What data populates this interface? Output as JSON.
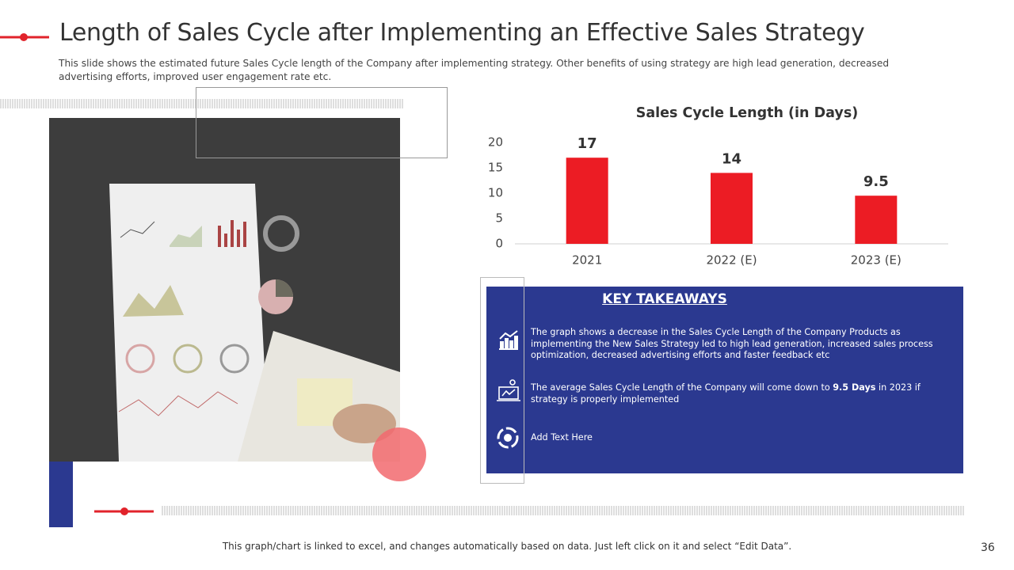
{
  "header": {
    "title": "Length of Sales Cycle after Implementing an Effective Sales Strategy",
    "subtitle": "This slide shows the estimated future Sales Cycle  length of the Company after implementing strategy. Other benefits of using strategy are high lead generation, decreased advertising efforts, improved user engagement rate etc."
  },
  "chart_data": {
    "type": "bar",
    "title": "Sales Cycle Length (in Days)",
    "categories": [
      "2021",
      "2022 (E)",
      "2023 (E)"
    ],
    "values": [
      17,
      14,
      9.5
    ],
    "color": "#ec1c24",
    "ylim": [
      0,
      20
    ],
    "yticks": [
      0,
      5,
      10,
      15,
      20
    ],
    "grid": false
  },
  "takeaways": {
    "heading": "KEY TAKEAWAYS",
    "items": [
      {
        "text": "The graph shows a decrease in the Sales Cycle Length of the Company  Products as implementing the New Sales Strategy led to high lead generation, increased sales process optimization, decreased advertising efforts and faster feedback etc"
      },
      {
        "before": "The average Sales Cycle Length of the Company  will come down to ",
        "bold": "9.5 Days",
        "after": " in 2023 if strategy is properly implemented"
      },
      {
        "text": "Add Text Here"
      }
    ]
  },
  "footer": {
    "note": "This graph/chart is linked to excel, and changes  automatically based on data. Just left click on it and select “Edit Data”.",
    "page": "36"
  }
}
